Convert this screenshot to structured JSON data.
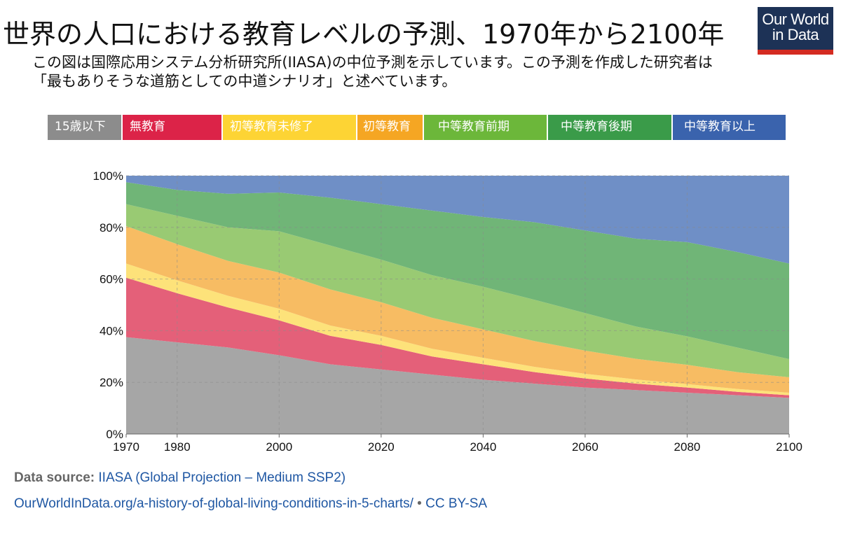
{
  "header": {
    "title": "世界の人口における教育レベルの予測、1970年から2100年",
    "subtitle": "この図は国際応用システム分析研究所(IIASA)の中位予測を示しています。この予測を作成した研究者は「最もありそうな道筋としての中道シナリオ」と述べています。",
    "logo_line1": "Our World",
    "logo_line2": "in Data"
  },
  "legend": [
    {
      "label": "15歳以下",
      "color": "#8c8c8c"
    },
    {
      "label": "無教育",
      "color": "#dc2348"
    },
    {
      "label": "初等教育未修了",
      "color": "#fdd434"
    },
    {
      "label": "初等教育",
      "color": "#f5a623"
    },
    {
      "label": "中等教育前期",
      "color": "#6cb73a"
    },
    {
      "label": "中等教育後期",
      "color": "#3a9b49"
    },
    {
      "label": "中等教育以上",
      "color": "#3a63ad"
    }
  ],
  "chart_data": {
    "type": "area",
    "stacked": true,
    "x": [
      1970,
      1980,
      1990,
      2000,
      2010,
      2020,
      2030,
      2040,
      2050,
      2060,
      2070,
      2080,
      2090,
      2100
    ],
    "series": [
      {
        "name": "15歳以下",
        "color": "#a6a6a6",
        "values": [
          37.5,
          35.5,
          33.5,
          30.5,
          27,
          25,
          23,
          21,
          19.5,
          18,
          17,
          16,
          15,
          14
        ]
      },
      {
        "name": "無教育",
        "color": "#e46079",
        "values": [
          23,
          19,
          15.5,
          13.5,
          11,
          9.5,
          7,
          6,
          4.5,
          3.5,
          2.5,
          2,
          1.3,
          1
        ]
      },
      {
        "name": "初等教育未修了",
        "color": "#fde27a",
        "values": [
          5.5,
          5,
          4.5,
          4.5,
          4,
          3.5,
          3,
          2.5,
          2,
          1.8,
          1.6,
          1.3,
          1.1,
          1
        ]
      },
      {
        "name": "初等教育",
        "color": "#f7bc63",
        "values": [
          14.5,
          14,
          13.5,
          14,
          14,
          13,
          12,
          11,
          10,
          9,
          8,
          7.5,
          6.5,
          6
        ]
      },
      {
        "name": "中等教育前期",
        "color": "#99ca73",
        "values": [
          8.5,
          11,
          13,
          16,
          17,
          16.5,
          16.5,
          16.5,
          16,
          14.5,
          12.5,
          11,
          9.5,
          7
        ]
      },
      {
        "name": "中等教育後期",
        "color": "#70b577",
        "values": [
          8.5,
          10,
          13,
          15,
          18.5,
          21.5,
          25,
          27,
          30,
          32,
          34,
          36.5,
          37,
          37
        ]
      },
      {
        "name": "中等教育以上",
        "color": "#6f8fc6",
        "values": [
          2.5,
          5.5,
          7,
          6.5,
          8.5,
          11,
          13.5,
          16,
          18,
          21.2,
          24.4,
          25.7,
          29.6,
          34
        ]
      }
    ],
    "title": "世界の人口における教育レベルの予測、1970年から2100年",
    "xlabel": "",
    "ylabel": "",
    "ylim": [
      0,
      100
    ],
    "xlim": [
      1970,
      2100
    ],
    "y_ticks": [
      "0%",
      "20%",
      "40%",
      "60%",
      "80%",
      "100%"
    ],
    "y_tick_values": [
      0,
      20,
      40,
      60,
      80,
      100
    ],
    "x_ticks": [
      "1970",
      "1980",
      "2000",
      "2020",
      "2040",
      "2060",
      "2080",
      "2100"
    ],
    "x_tick_values": [
      1970,
      1980,
      2000,
      2020,
      2040,
      2060,
      2080,
      2100
    ],
    "grid": true
  },
  "footer": {
    "source_label": "Data source:",
    "source_text": "IIASA (Global Projection – Medium SSP2)",
    "url": "OurWorldInData.org/a-history-of-global-living-conditions-in-5-charts/",
    "separator": "•",
    "license": "CC BY-SA"
  }
}
